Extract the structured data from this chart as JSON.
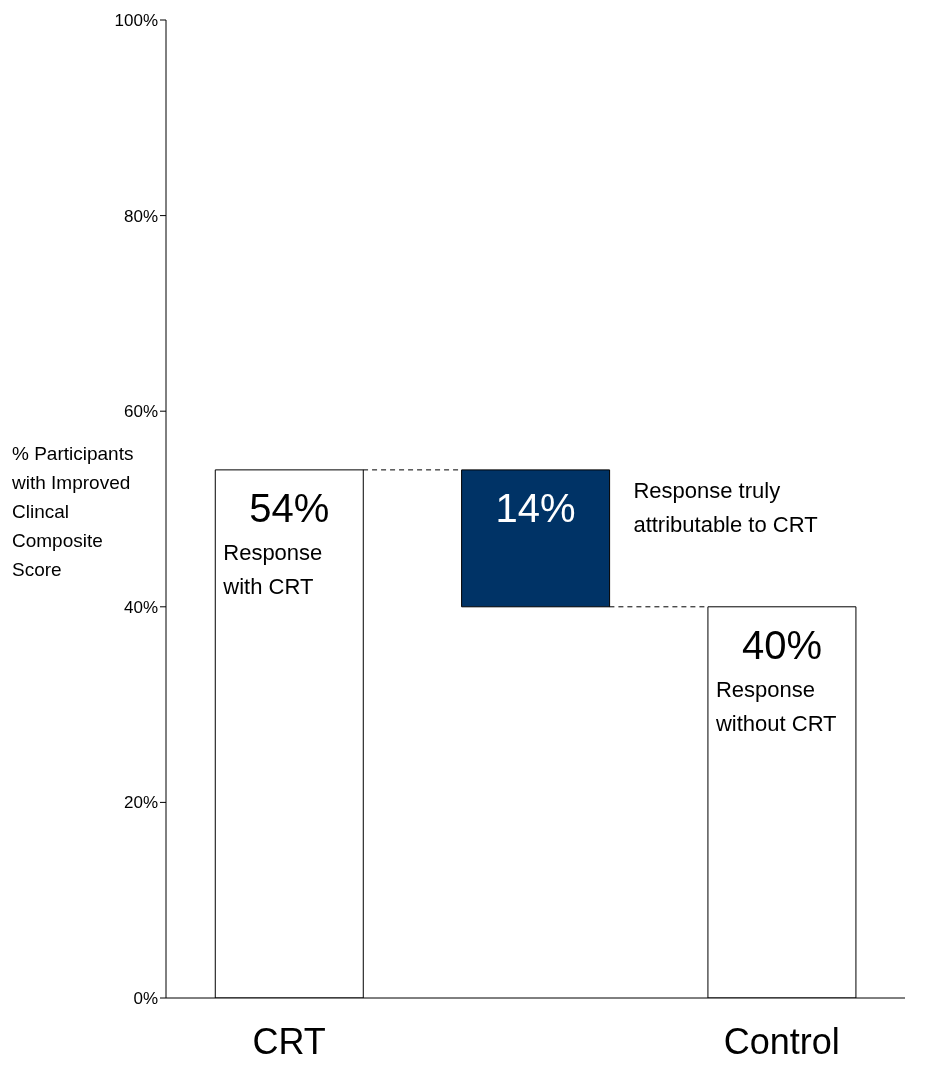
{
  "chart_data": {
    "type": "bar",
    "ylabel": "% Participants with Improved Clincal Composite Score",
    "categories": [
      "CRT",
      null,
      "Control"
    ],
    "values": [
      54,
      14,
      40
    ],
    "base": [
      0,
      40,
      0
    ],
    "colors": [
      "#ffffff",
      "#003366",
      "#ffffff"
    ],
    "value_labels": [
      "54%",
      "14%",
      "40%"
    ],
    "ylim": [
      0,
      100
    ],
    "yticks": [
      {
        "value": 0,
        "label": "0%"
      },
      {
        "value": 20,
        "label": "20%"
      },
      {
        "value": 40,
        "label": "40%"
      },
      {
        "value": 60,
        "label": "60%"
      },
      {
        "value": 80,
        "label": "80%"
      },
      {
        "value": 100,
        "label": "100%"
      }
    ],
    "annotations": [
      "Response with CRT",
      "Response truly attributable to CRT",
      "Response without CRT"
    ]
  }
}
